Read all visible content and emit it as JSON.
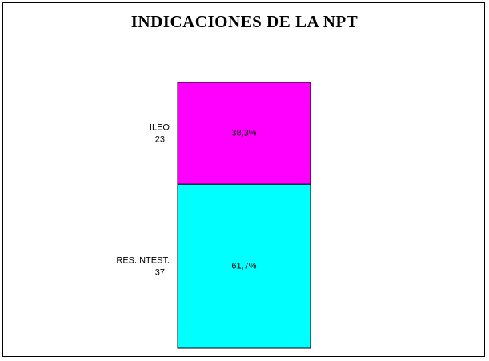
{
  "chart_data": {
    "type": "bar",
    "stacked": true,
    "title": "INDICACIONES DE LA NPT",
    "segments": [
      {
        "name": "RES.INTEST.",
        "count": "37",
        "value": 61.7,
        "pct_label": "61,7%",
        "color": "#00ffff"
      },
      {
        "name": "ILEO",
        "count": "23",
        "value": 38.3,
        "pct_label": "38,3%",
        "color": "#ff00ff"
      }
    ],
    "ylim": [
      0,
      100
    ],
    "grid": false,
    "legend": "none"
  }
}
